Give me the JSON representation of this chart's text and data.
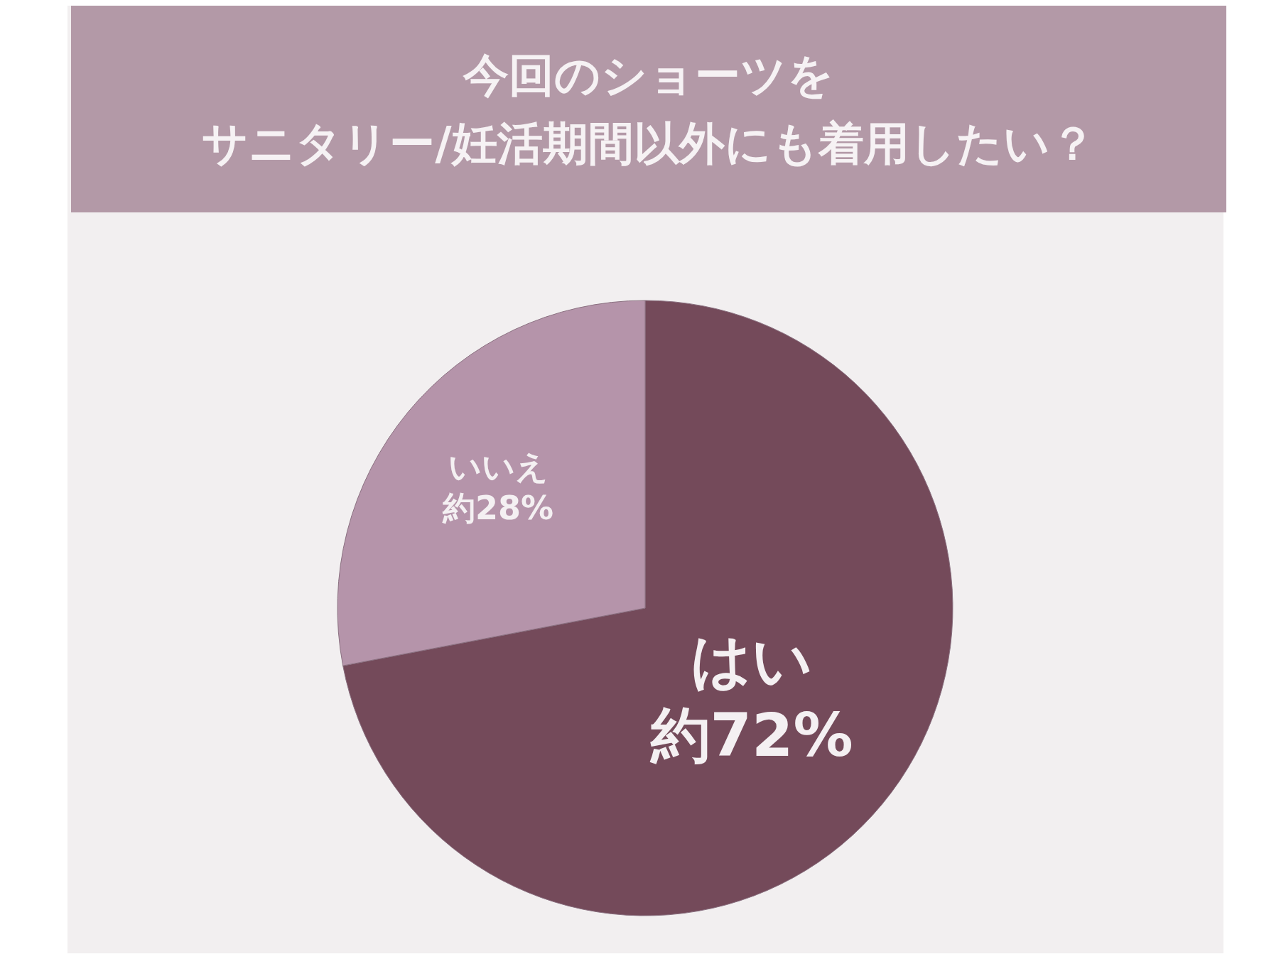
{
  "chart_data": {
    "type": "pie",
    "title": "今回のショーツを",
    "subtitle": "サニタリー/妊活期間以外にも着用したい？",
    "categories": [
      "はい",
      "いいえ"
    ],
    "values": [
      72,
      28
    ],
    "colors": [
      "#744a5a",
      "#b594aa"
    ],
    "value_labels": [
      "約72%",
      "約28%"
    ],
    "legend": false
  }
}
